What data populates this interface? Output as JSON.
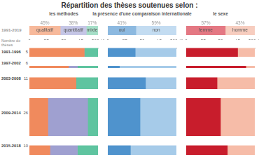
{
  "title": "Répartition des thèses soutenues selon :",
  "overall_category": "1991-2019",
  "counts": {
    "label": "Nombre de thèses",
    "values": [
      5,
      6,
      11,
      26,
      10
    ]
  },
  "chart_data": [
    {
      "type": "bar",
      "title": "les méthodes",
      "orientation": "horizontal",
      "stacked": true,
      "grid": false,
      "categories": [
        "1991-1996",
        "1997-2002",
        "2003-2008",
        "2009-2014",
        "2015-2018"
      ],
      "xlim": [
        0,
        100
      ],
      "xticks": [
        0,
        25,
        50,
        75,
        {
          "value": 100,
          "label": "100 %"
        }
      ],
      "series": [
        {
          "name": "qualitatif",
          "color": "#f08a5d",
          "values": [
            80,
            57,
            68,
            27,
            30
          ],
          "overall": 45,
          "overall_label": "45%",
          "overall_color": "#f7b99b"
        },
        {
          "name": "quantitatif",
          "color": "#9fa0d0",
          "values": [
            0,
            13,
            0,
            58,
            40
          ],
          "overall": 38,
          "overall_label": "38%",
          "overall_color": "#c5c6e6"
        },
        {
          "name": "mixte",
          "color": "#5fc4a0",
          "values": [
            20,
            30,
            32,
            15,
            30
          ],
          "overall": 17,
          "overall_label": "17%",
          "overall_color": "#a6dfc8"
        }
      ]
    },
    {
      "type": "bar",
      "title": "la présence d'une comparaison internationale",
      "orientation": "horizontal",
      "stacked": true,
      "grid": false,
      "categories": [
        "1991-1996",
        "1997-2002",
        "2003-2008",
        "2009-2014",
        "2015-2018"
      ],
      "xlim": [
        0,
        100
      ],
      "xticks": [
        0,
        25,
        50,
        75,
        {
          "value": 100,
          "label": "100 %"
        }
      ],
      "series": [
        {
          "name": "oui",
          "color": "#4f93cd",
          "values": [
            40,
            17,
            55,
            47,
            33
          ],
          "overall": 41,
          "overall_label": "41%",
          "overall_color": "#8cb9e0"
        },
        {
          "name": "non",
          "color": "#a6cbe9",
          "values": [
            60,
            83,
            45,
            53,
            67
          ],
          "overall": 59,
          "overall_label": "59%",
          "overall_color": "#c3dcf1"
        }
      ]
    },
    {
      "type": "bar",
      "title": "le sexe",
      "orientation": "horizontal",
      "stacked": true,
      "grid": false,
      "categories": [
        "1991-1996",
        "1997-2002",
        "2003-2008",
        "2009-2014",
        "2015-2018"
      ],
      "xlim": [
        0,
        100
      ],
      "xticks": [
        0,
        25,
        50,
        75,
        {
          "value": 100,
          "label": "100 %"
        }
      ],
      "series": [
        {
          "name": "femme",
          "color": "#c81d2c",
          "values": [
            75,
            87,
            45,
            50,
            60
          ],
          "overall": 57,
          "overall_label": "57%",
          "overall_color": "#e47883"
        },
        {
          "name": "homme",
          "color": "#f6bca8",
          "values": [
            25,
            13,
            55,
            50,
            40
          ],
          "overall": 43,
          "overall_label": "43%",
          "overall_color": "#f7cdbf"
        }
      ]
    }
  ]
}
